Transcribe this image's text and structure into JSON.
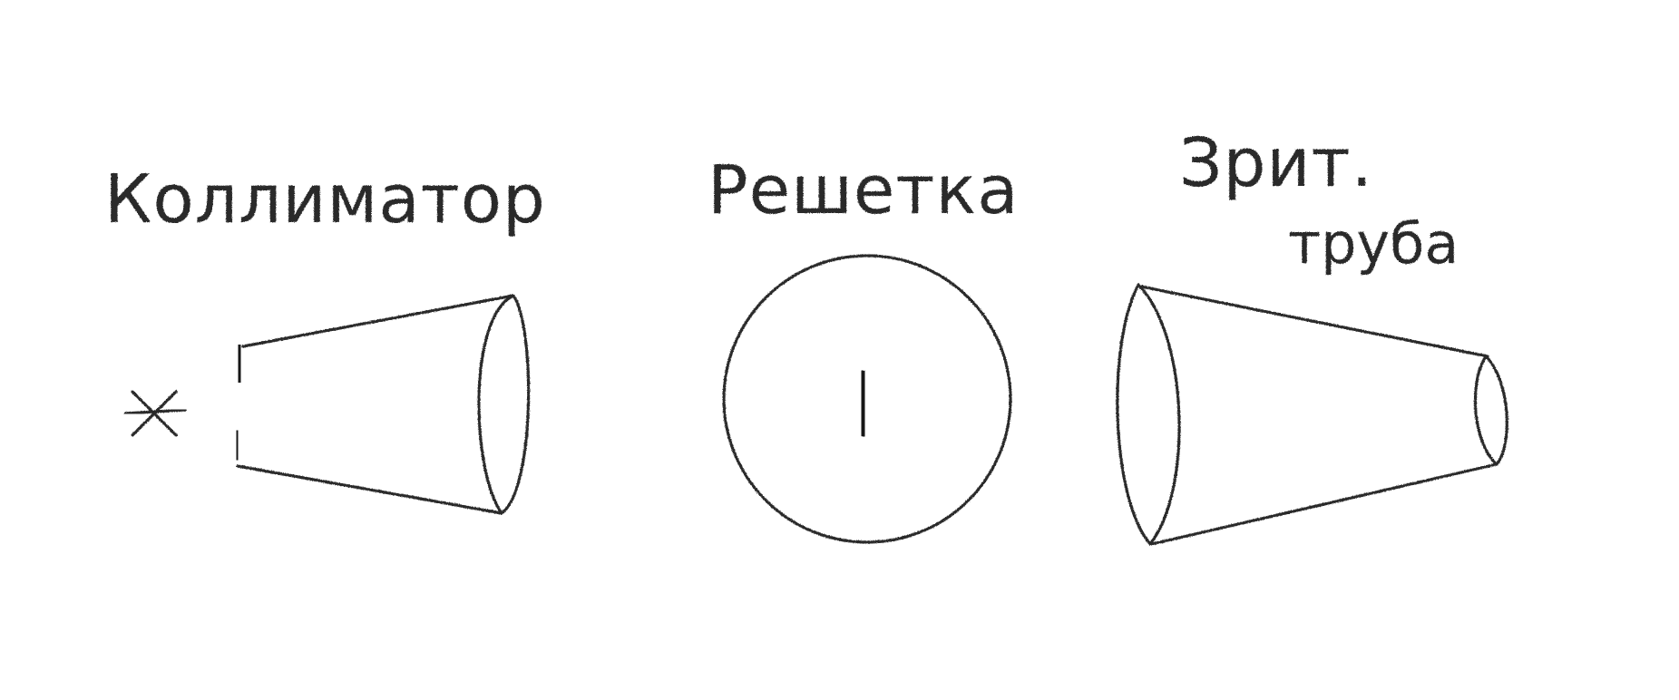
{
  "labels": {
    "collimator": "Коллиматор",
    "grating": "Решетка",
    "telescope_line1": "Зрит.",
    "telescope_line2": "труба"
  },
  "icons": {
    "light_source": "asterisk-light-source-icon",
    "slit": "slit-icon",
    "grating_line": "grating-slit-icon"
  },
  "colors": {
    "pencil": "#2a2a2a",
    "background": "#ffffff"
  }
}
